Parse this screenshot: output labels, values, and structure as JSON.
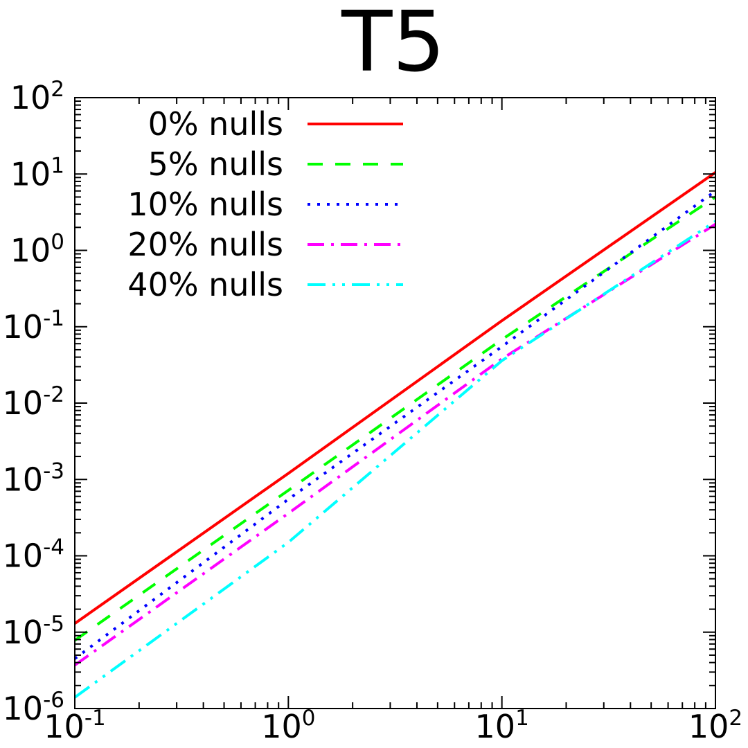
{
  "chart_data": {
    "type": "line",
    "title": "T5",
    "xlabel": "",
    "ylabel": "",
    "x_scale": "log",
    "y_scale": "log",
    "xlim": [
      0.1,
      100
    ],
    "ylim": [
      1e-06,
      100
    ],
    "grid": false,
    "legend_position": "top-left",
    "x_ticks": [
      {
        "value": 0.1,
        "base": "10",
        "exp": "-1"
      },
      {
        "value": 1,
        "base": "10",
        "exp": "0"
      },
      {
        "value": 10,
        "base": "10",
        "exp": "1"
      },
      {
        "value": 100,
        "base": "10",
        "exp": "2"
      }
    ],
    "y_ticks": [
      {
        "value": 1e-06,
        "base": "10",
        "exp": "-6"
      },
      {
        "value": 1e-05,
        "base": "10",
        "exp": "-5"
      },
      {
        "value": 0.0001,
        "base": "10",
        "exp": "-4"
      },
      {
        "value": 0.001,
        "base": "10",
        "exp": "-3"
      },
      {
        "value": 0.01,
        "base": "10",
        "exp": "-2"
      },
      {
        "value": 0.1,
        "base": "10",
        "exp": "-1"
      },
      {
        "value": 1,
        "base": "10",
        "exp": "0"
      },
      {
        "value": 10,
        "base": "10",
        "exp": "1"
      },
      {
        "value": 100,
        "base": "10",
        "exp": "2"
      }
    ],
    "series": [
      {
        "name": "0% nulls",
        "color": "#ff0000",
        "dash": "solid",
        "x": [
          0.1,
          1,
          10,
          100
        ],
        "y": [
          1.3e-05,
          0.0012,
          0.12,
          10.5
        ]
      },
      {
        "name": "5% nulls",
        "color": "#00ff00",
        "dash": "dashed",
        "x": [
          0.1,
          1,
          10,
          100
        ],
        "y": [
          7.8e-06,
          0.00072,
          0.068,
          5.0
        ]
      },
      {
        "name": "10% nulls",
        "color": "#0000ff",
        "dash": "dotted",
        "x": [
          0.1,
          1,
          10,
          100
        ],
        "y": [
          4.5e-06,
          0.00055,
          0.055,
          6.0
        ]
      },
      {
        "name": "20% nulls",
        "color": "#ff00ff",
        "dash": "dash-dot",
        "x": [
          0.1,
          1,
          10,
          100
        ],
        "y": [
          3.7e-06,
          0.00036,
          0.038,
          2.2
        ]
      },
      {
        "name": "40% nulls",
        "color": "#00ffff",
        "dash": "dash-dot-dot",
        "x": [
          0.1,
          1,
          10,
          100
        ],
        "y": [
          1.4e-06,
          0.00015,
          0.036,
          2.4
        ]
      }
    ]
  }
}
